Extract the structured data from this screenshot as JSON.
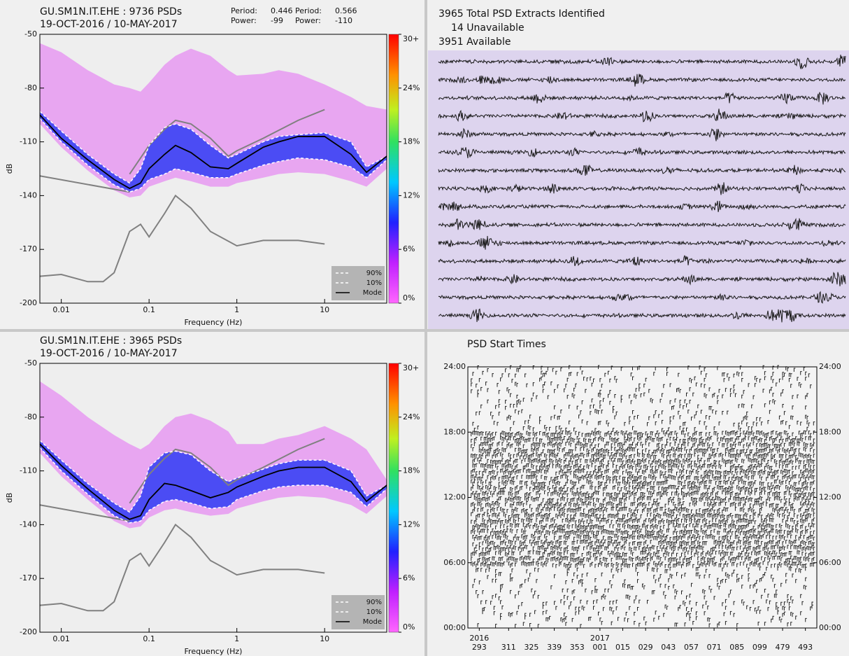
{
  "chart_data": [
    {
      "type": "pdf",
      "title": "GU.SM1N.IT.EHE : 9736 PSDs",
      "subtitle": "19-OCT-2016 / 10-MAY-2017",
      "readouts": [
        {
          "period_label": "Period:",
          "period": 0.446,
          "power_label": "Power:",
          "power": -99
        },
        {
          "period_label": "Period:",
          "period": 0.566,
          "power_label": "Power:",
          "power": -110
        }
      ],
      "xlabel": "Frequency (Hz)",
      "ylabel": "dB",
      "log_x": true,
      "xlim": [
        0.0057,
        51
      ],
      "xticks": [
        0.01,
        0.1,
        1,
        10
      ],
      "ylim": [
        -200,
        -50
      ],
      "yticks": [
        -200,
        -170,
        -140,
        -110,
        -80,
        -50
      ],
      "x": [
        0.0057,
        0.01,
        0.02,
        0.04,
        0.06,
        0.08,
        0.1,
        0.15,
        0.2,
        0.3,
        0.5,
        0.8,
        1,
        2,
        3,
        5,
        10,
        20,
        30,
        51
      ],
      "envelope": {
        "color": "#e68ef2",
        "upper": [
          -55,
          -60,
          -70,
          -78,
          -80,
          -82,
          -77,
          -67,
          -62,
          -58,
          -62,
          -70,
          -73,
          -72,
          -70,
          -72,
          -78,
          -85,
          -90,
          -92
        ],
        "lower": [
          -100,
          -113,
          -126,
          -137,
          -141,
          -140,
          -135,
          -132,
          -130,
          -132,
          -135,
          -135,
          -133,
          -130,
          -128,
          -127,
          -128,
          -132,
          -135,
          -125
        ]
      },
      "band_color": "#2f3cf5",
      "series": [
        {
          "name": "90%",
          "color": "#ffffff",
          "dashed": true,
          "values": [
            -93,
            -104,
            -117,
            -128,
            -133,
            -125,
            -112,
            -102,
            -100,
            -103,
            -112,
            -119,
            -117,
            -110,
            -107,
            -106,
            -105,
            -110,
            -124,
            -118
          ]
        },
        {
          "name": "10%",
          "color": "#ffffff",
          "dashed": true,
          "values": [
            -97,
            -110,
            -123,
            -134,
            -138,
            -136,
            -131,
            -128,
            -125,
            -127,
            -130,
            -130,
            -128,
            -123,
            -121,
            -119,
            -120,
            -124,
            -130,
            -120
          ]
        },
        {
          "name": "Mode",
          "color": "#000000",
          "dashed": false,
          "values": [
            -95,
            -108,
            -120,
            -131,
            -136,
            -133,
            -125,
            -117,
            -112,
            -116,
            -124,
            -125,
            -122,
            -113,
            -110,
            -107,
            -107,
            -117,
            -127,
            -118
          ]
        }
      ],
      "noise_models": [
        {
          "color": "#808080",
          "x": [
            0.06,
            0.1,
            0.15,
            0.2,
            0.3,
            0.5,
            0.8,
            1,
            2,
            5,
            10
          ],
          "values": [
            -128,
            -112,
            -103,
            -98,
            -100,
            -108,
            -118,
            -115,
            -108,
            -98,
            -92
          ]
        },
        {
          "color": "#808080",
          "x": [
            0.0057,
            0.06
          ],
          "values": [
            -129,
            -138
          ]
        },
        {
          "color": "#808080",
          "x": [
            0.0057,
            0.01,
            0.02,
            0.03,
            0.04,
            0.06,
            0.08,
            0.1,
            0.15,
            0.2,
            0.3,
            0.5,
            1,
            2,
            5,
            10
          ],
          "values": [
            -185,
            -184,
            -188,
            -188,
            -183,
            -160,
            -156,
            -163,
            -150,
            -140,
            -147,
            -160,
            -168,
            -165,
            -165,
            -167
          ]
        }
      ],
      "clim": [
        0,
        30
      ],
      "cticks": [
        {
          "value": 0,
          "label": "0%"
        },
        {
          "value": 6,
          "label": "6%"
        },
        {
          "value": 12,
          "label": "12%"
        },
        {
          "value": 18,
          "label": "18%"
        },
        {
          "value": 24,
          "label": "24%"
        },
        {
          "value": 30,
          "label": "30+"
        }
      ]
    },
    {
      "type": "pdf",
      "title": "GU.SM1N.IT.EHE : 3965 PSDs",
      "subtitle": "19-OCT-2016 / 10-MAY-2017",
      "xlabel": "Frequency (Hz)",
      "ylabel": "dB",
      "log_x": true,
      "xlim": [
        0.0057,
        51
      ],
      "xticks": [
        0.01,
        0.1,
        1,
        10
      ],
      "ylim": [
        -200,
        -50
      ],
      "yticks": [
        -200,
        -170,
        -140,
        -110,
        -80,
        -50
      ],
      "x": [
        0.0057,
        0.01,
        0.02,
        0.04,
        0.06,
        0.08,
        0.1,
        0.15,
        0.2,
        0.3,
        0.5,
        0.8,
        1,
        2,
        3,
        5,
        10,
        20,
        30,
        51
      ],
      "envelope": {
        "color": "#e68ef2",
        "upper": [
          -60,
          -68,
          -80,
          -90,
          -95,
          -98,
          -95,
          -85,
          -80,
          -78,
          -82,
          -88,
          -95,
          -95,
          -92,
          -90,
          -85,
          -92,
          -98,
          -115
        ],
        "lower": [
          -100,
          -113,
          -126,
          -138,
          -142,
          -141,
          -136,
          -132,
          -131,
          -133,
          -135,
          -134,
          -131,
          -127,
          -125,
          -124,
          -125,
          -129,
          -134,
          -124
        ]
      },
      "band_color": "#2f3cf5",
      "series": [
        {
          "name": "90%",
          "color": "#ffffff",
          "dashed": true,
          "values": [
            -93,
            -104,
            -117,
            -128,
            -133,
            -124,
            -108,
            -100,
            -99,
            -101,
            -110,
            -116,
            -114,
            -109,
            -106,
            -104,
            -104,
            -110,
            -124,
            -118
          ]
        },
        {
          "name": "10%",
          "color": "#ffffff",
          "dashed": true,
          "values": [
            -97,
            -110,
            -123,
            -135,
            -139,
            -138,
            -132,
            -127,
            -126,
            -128,
            -131,
            -130,
            -126,
            -121,
            -119,
            -118,
            -118,
            -122,
            -130,
            -120
          ]
        },
        {
          "name": "Mode",
          "color": "#000000",
          "dashed": false,
          "values": [
            -95,
            -107,
            -120,
            -132,
            -137,
            -135,
            -126,
            -117,
            -118,
            -121,
            -125,
            -122,
            -119,
            -113,
            -110,
            -108,
            -108,
            -116,
            -127,
            -118
          ]
        }
      ],
      "noise_models": [
        {
          "color": "#808080",
          "x": [
            0.06,
            0.1,
            0.15,
            0.2,
            0.3,
            0.5,
            0.8,
            1,
            2,
            5,
            10
          ],
          "values": [
            -128,
            -112,
            -103,
            -98,
            -100,
            -108,
            -118,
            -115,
            -108,
            -98,
            -92
          ]
        },
        {
          "color": "#808080",
          "x": [
            0.0057,
            0.06
          ],
          "values": [
            -129,
            -138
          ]
        },
        {
          "color": "#808080",
          "x": [
            0.0057,
            0.01,
            0.02,
            0.03,
            0.04,
            0.06,
            0.08,
            0.1,
            0.15,
            0.2,
            0.3,
            0.5,
            1,
            2,
            5,
            10
          ],
          "values": [
            -185,
            -184,
            -188,
            -188,
            -183,
            -160,
            -156,
            -163,
            -150,
            -140,
            -147,
            -160,
            -168,
            -165,
            -165,
            -167
          ]
        }
      ],
      "clim": [
        0,
        30
      ],
      "cticks": [
        {
          "value": 0,
          "label": "0%"
        },
        {
          "value": 6,
          "label": "6%"
        },
        {
          "value": 12,
          "label": "12%"
        },
        {
          "value": 18,
          "label": "18%"
        },
        {
          "value": 24,
          "label": "24%"
        },
        {
          "value": 30,
          "label": "30+"
        }
      ]
    },
    {
      "type": "event",
      "title": "PSD Start Times",
      "xlim": [
        286,
        500
      ],
      "xticks": [
        293,
        311,
        325,
        339,
        353,
        {
          "value": 367,
          "label": "001"
        },
        {
          "value": 381,
          "label": "015"
        },
        {
          "value": 395,
          "label": "029"
        },
        {
          "value": 409,
          "label": "043"
        },
        {
          "value": 423,
          "label": "057"
        },
        {
          "value": 437,
          "label": "071"
        },
        {
          "value": 451,
          "label": "085"
        },
        {
          "value": 465,
          "label": "099"
        },
        479,
        493
      ],
      "year_labels": [
        {
          "value": 293,
          "label": "2016"
        },
        {
          "value": 367,
          "label": "2017"
        }
      ],
      "ylim": [
        0,
        24
      ],
      "yticks": [
        {
          "value": 0,
          "label": "00:00"
        },
        {
          "value": 6,
          "label": "06:00"
        },
        {
          "value": 12,
          "label": "12:00"
        },
        {
          "value": 18,
          "label": "18:00"
        },
        {
          "value": 24,
          "label": "24:00"
        }
      ]
    }
  ],
  "extracts": {
    "lines": [
      "3965 Total PSD Extracts Identified",
      "14 Unavailable",
      "3951 Available"
    ],
    "background": "#ddd4ee"
  }
}
